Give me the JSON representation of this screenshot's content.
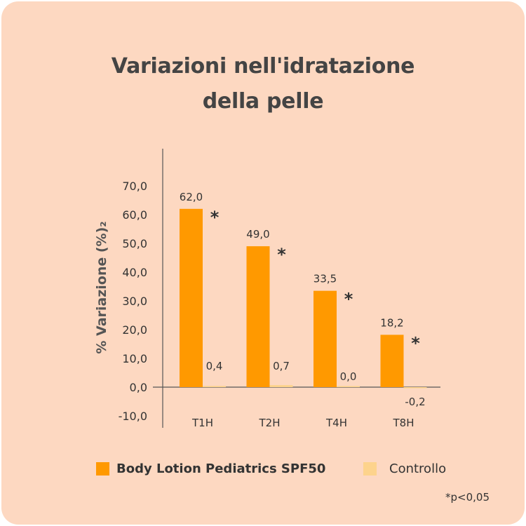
{
  "title_lines": [
    "Variazioni nell'idratazione",
    "della pelle"
  ],
  "colors": {
    "background": "#fdd8c1",
    "series1": "#ff9900",
    "series2": "#fdd38c",
    "text": "#333333"
  },
  "chart_data": {
    "type": "bar",
    "title": "Variazioni nell'idratazione della pelle",
    "xlabel": "",
    "ylabel": "% Variazione (%)₂",
    "ylim": [
      -10,
      70
    ],
    "yticks": [
      "-10,0",
      "0,0",
      "10,0",
      "20,0",
      "30,0",
      "40,0",
      "50,0",
      "60,0",
      "70,0"
    ],
    "ytick_values": [
      -10,
      0,
      10,
      20,
      30,
      40,
      50,
      60,
      70
    ],
    "categories": [
      "T1H",
      "T2H",
      "T4H",
      "T8H"
    ],
    "series": [
      {
        "name": "Body Lotion Pediatrics SPF50",
        "values": [
          62.0,
          49.0,
          33.5,
          18.2
        ],
        "labels": [
          "62,0",
          "49,0",
          "33,5",
          "18,2"
        ],
        "significant": [
          true,
          true,
          true,
          true
        ]
      },
      {
        "name": "Controllo",
        "values": [
          0.4,
          0.7,
          0.0,
          -0.2
        ],
        "labels": [
          "0,4",
          "0,7",
          "0,0",
          "-0,2"
        ]
      }
    ],
    "significance_marker": "*",
    "legend_position": "bottom",
    "grid": false
  },
  "footnote": "*p<0,05"
}
